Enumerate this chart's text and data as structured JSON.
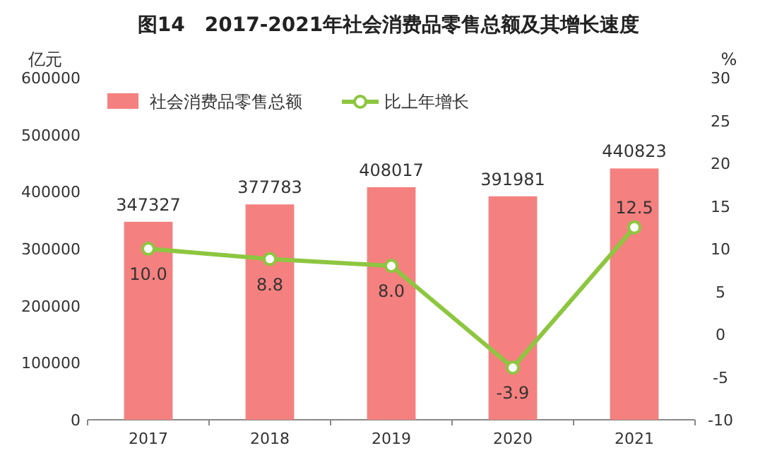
{
  "chart_data": {
    "type": "bar",
    "title": "图14　2017-2021年社会消费品零售总额及其增长速度",
    "ylabel": "亿元",
    "y2label": "%",
    "categories": [
      "2017",
      "2018",
      "2019",
      "2020",
      "2021"
    ],
    "series": [
      {
        "name": "社会消费品零售总额",
        "color": "#f4817f",
        "values": [
          347327,
          377783,
          408017,
          391981,
          440823
        ]
      },
      {
        "name": "比上年增长",
        "type": "line",
        "axis": "y2",
        "color": "#8dc63f",
        "values": [
          10.0,
          8.8,
          8.0,
          -3.9,
          12.5
        ],
        "value_labels": [
          "10.0",
          "8.8",
          "8.0",
          "-3.9",
          "12.5"
        ]
      }
    ],
    "ylim": [
      0,
      600000
    ],
    "yticks": [
      0,
      100000,
      200000,
      300000,
      400000,
      500000,
      600000
    ],
    "y2lim": [
      -10,
      30
    ],
    "y2ticks": [
      -10,
      -5,
      0,
      5,
      10,
      15,
      20,
      25,
      30
    ],
    "data_labels": true,
    "legend": "top left",
    "marker": "circle",
    "line_style": "solid"
  }
}
